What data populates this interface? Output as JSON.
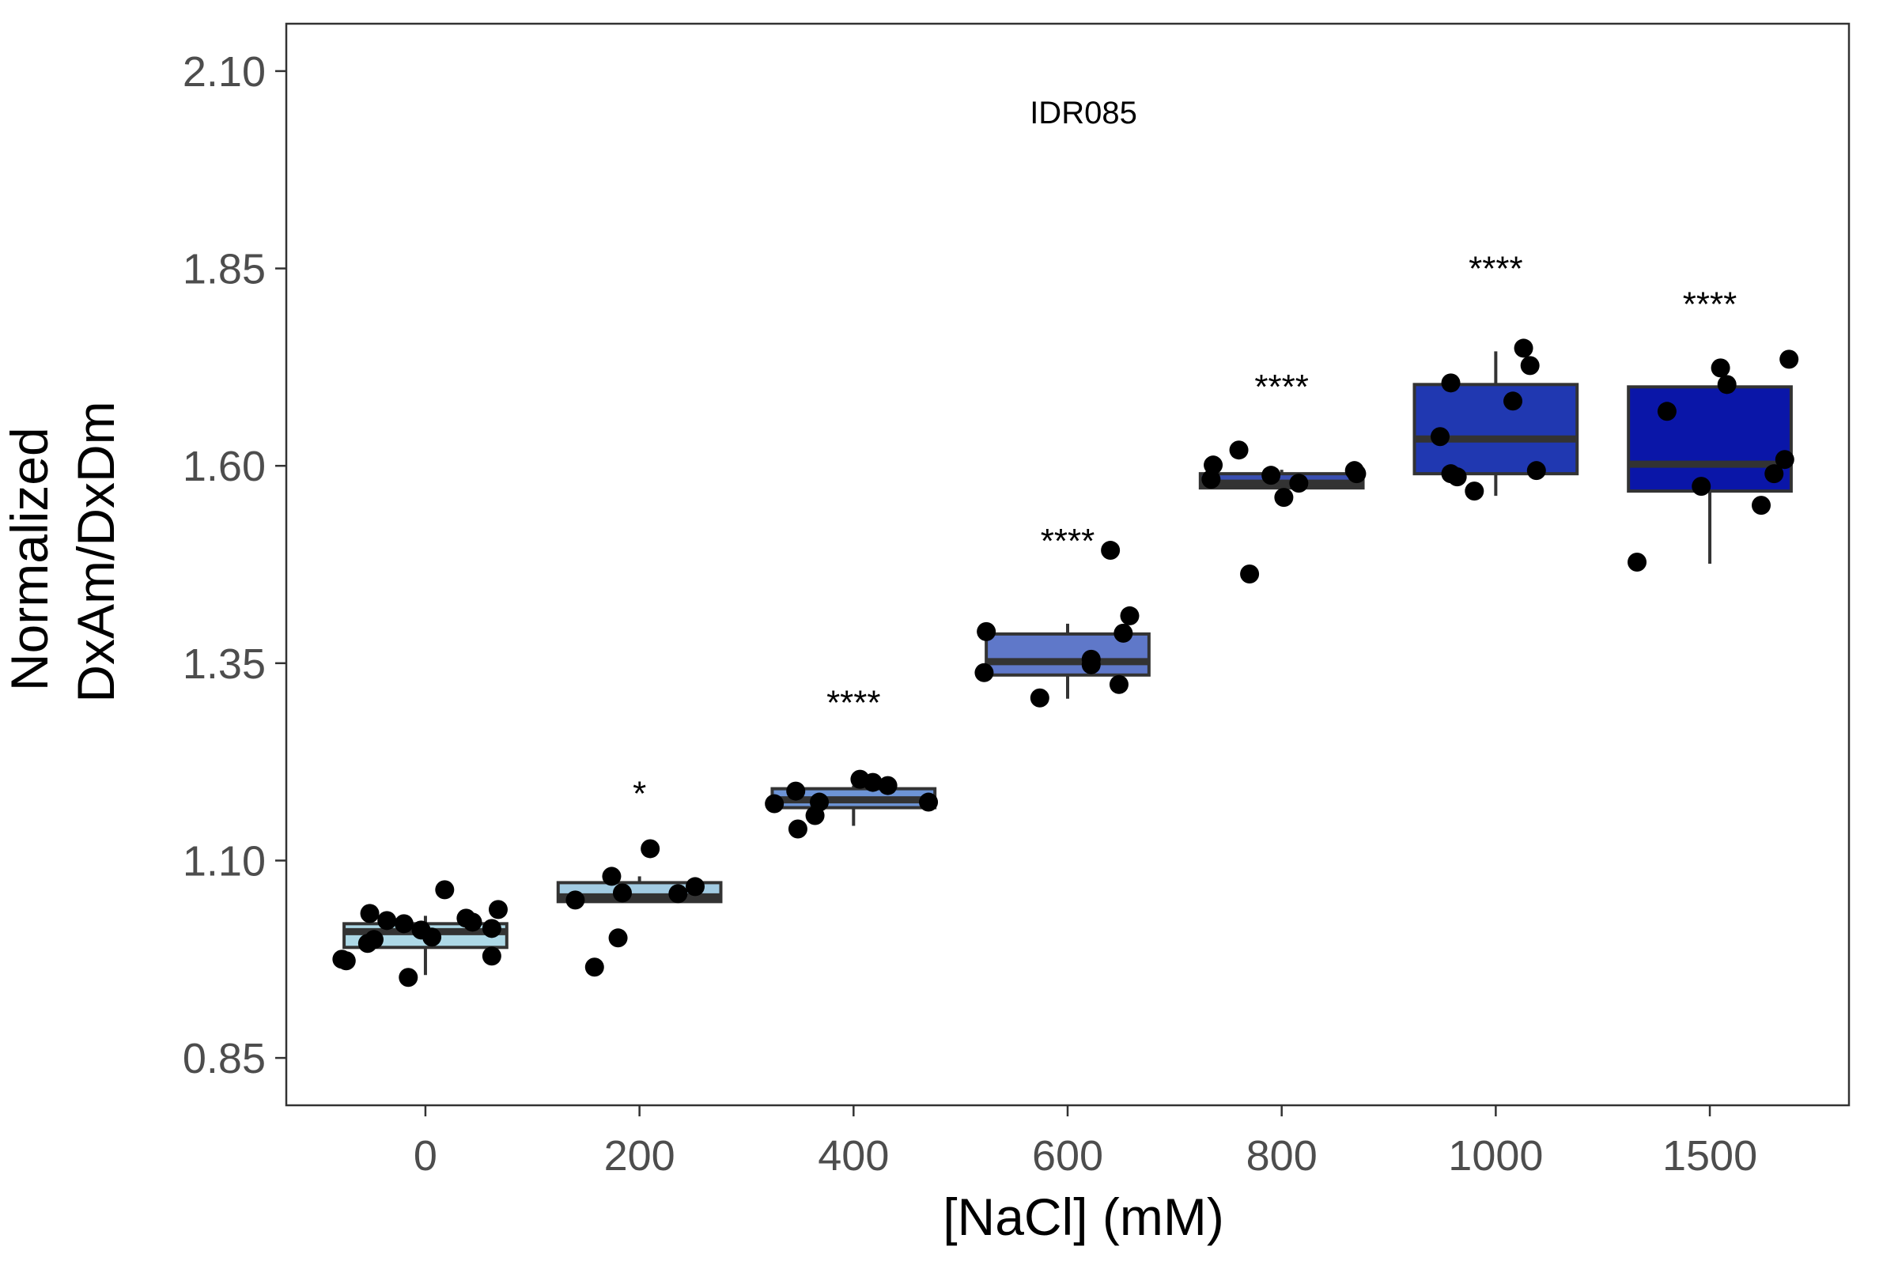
{
  "chart_data": {
    "type": "box",
    "title": "",
    "panel_label": "IDR085",
    "xlabel": "[NaCl] (mM)",
    "ylabel": [
      "Normalized",
      "DxAm/DxDm"
    ],
    "ylim": [
      0.79,
      2.16
    ],
    "yticks": [
      0.85,
      1.1,
      1.35,
      1.6,
      1.85,
      2.1
    ],
    "ytick_labels": [
      "0.85",
      "1.10",
      "1.35",
      "1.60",
      "1.85",
      "2.10"
    ],
    "categories": [
      "0",
      "200",
      "400",
      "600",
      "800",
      "1000",
      "1500"
    ],
    "grid": false,
    "legend": "none",
    "groups": [
      {
        "category": "0",
        "fill": "#add8e6",
        "box": {
          "q1": 0.99,
          "median": 1.01,
          "q3": 1.02,
          "whisker_low": 0.955,
          "whisker_high": 1.03
        },
        "significance": "",
        "points": [
          [
            -0.39,
            0.975
          ],
          [
            -0.37,
            0.973
          ],
          [
            -0.26,
            1.033
          ],
          [
            -0.27,
            0.995
          ],
          [
            -0.24,
            1.0
          ],
          [
            -0.18,
            1.024
          ],
          [
            -0.1,
            1.02
          ],
          [
            -0.08,
            0.952
          ],
          [
            -0.02,
            1.012
          ],
          [
            0.03,
            1.003
          ],
          [
            0.09,
            1.063
          ],
          [
            0.19,
            1.027
          ],
          [
            0.22,
            1.022
          ],
          [
            0.31,
            0.979
          ],
          [
            0.31,
            1.014
          ],
          [
            0.34,
            1.038
          ]
        ]
      },
      {
        "category": "200",
        "fill": "#a2cbe2",
        "box": {
          "q1": 1.048,
          "median": 1.054,
          "q3": 1.072,
          "whisker_low": 1.048,
          "whisker_high": 1.08
        },
        "significance": "*",
        "points": [
          [
            -0.3,
            1.05
          ],
          [
            -0.21,
            0.965
          ],
          [
            -0.13,
            1.08
          ],
          [
            -0.1,
            1.002
          ],
          [
            -0.08,
            1.059
          ],
          [
            0.05,
            1.115
          ],
          [
            0.18,
            1.058
          ],
          [
            0.26,
            1.067
          ]
        ]
      },
      {
        "category": "400",
        "fill": "#6d94d6",
        "box": {
          "q1": 1.167,
          "median": 1.177,
          "q3": 1.191,
          "whisker_low": 1.144,
          "whisker_high": 1.195
        },
        "significance": "****",
        "points": [
          [
            -0.37,
            1.172
          ],
          [
            -0.27,
            1.188
          ],
          [
            -0.26,
            1.14
          ],
          [
            -0.18,
            1.157
          ],
          [
            -0.16,
            1.174
          ],
          [
            0.03,
            1.203
          ],
          [
            0.09,
            1.199
          ],
          [
            0.16,
            1.195
          ],
          [
            0.35,
            1.174
          ]
        ]
      },
      {
        "category": "600",
        "fill": "#5f78c9",
        "box": {
          "q1": 1.335,
          "median": 1.352,
          "q3": 1.387,
          "whisker_low": 1.305,
          "whisker_high": 1.4
        },
        "significance": "****",
        "points": [
          [
            -0.39,
            1.338
          ],
          [
            -0.38,
            1.39
          ],
          [
            -0.13,
            1.306
          ],
          [
            0.11,
            1.348
          ],
          [
            0.11,
            1.355
          ],
          [
            0.2,
            1.493
          ],
          [
            0.24,
            1.323
          ],
          [
            0.26,
            1.388
          ],
          [
            0.29,
            1.41
          ]
        ]
      },
      {
        "category": "800",
        "fill": "#3a4fb1",
        "box": {
          "q1": 1.572,
          "median": 1.578,
          "q3": 1.59,
          "whisker_low": 1.572,
          "whisker_high": 1.595
        },
        "significance": "****",
        "points": [
          [
            -0.33,
            1.583
          ],
          [
            -0.32,
            1.601
          ],
          [
            -0.15,
            1.463
          ],
          [
            -0.2,
            1.62
          ],
          [
            -0.05,
            1.588
          ],
          [
            0.01,
            1.56
          ],
          [
            0.08,
            1.578
          ],
          [
            0.34,
            1.594
          ],
          [
            0.35,
            1.59
          ]
        ]
      },
      {
        "category": "1000",
        "fill": "#2038b1",
        "box": {
          "q1": 1.59,
          "median": 1.634,
          "q3": 1.703,
          "whisker_low": 1.562,
          "whisker_high": 1.745
        },
        "significance": "****",
        "points": [
          [
            -0.26,
            1.637
          ],
          [
            -0.21,
            1.59
          ],
          [
            -0.21,
            1.705
          ],
          [
            -0.18,
            1.586
          ],
          [
            -0.1,
            1.568
          ],
          [
            0.08,
            1.682
          ],
          [
            0.13,
            1.749
          ],
          [
            0.16,
            1.727
          ],
          [
            0.19,
            1.594
          ]
        ]
      },
      {
        "category": "1500",
        "fill": "#0a16a8",
        "box": {
          "q1": 1.568,
          "median": 1.602,
          "q3": 1.7,
          "whisker_low": 1.476,
          "whisker_high": 1.7
        },
        "significance": "****",
        "points": [
          [
            -0.34,
            1.478
          ],
          [
            -0.2,
            1.669
          ],
          [
            -0.04,
            1.574
          ],
          [
            0.05,
            1.724
          ],
          [
            0.08,
            1.703
          ],
          [
            0.24,
            1.55
          ],
          [
            0.3,
            1.59
          ],
          [
            0.35,
            1.608
          ],
          [
            0.37,
            1.735
          ]
        ]
      }
    ]
  }
}
